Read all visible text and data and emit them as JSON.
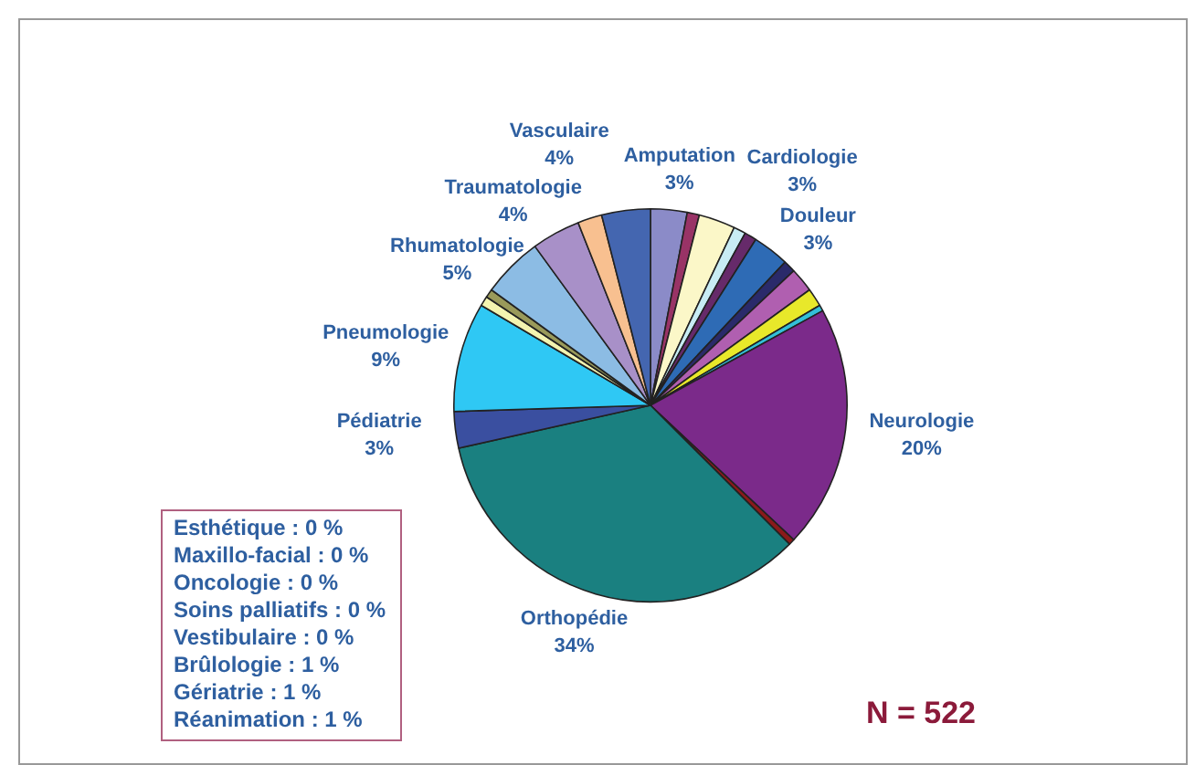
{
  "chart_data": {
    "type": "pie",
    "categories": [
      "Amputation",
      null,
      "Cardiologie",
      null,
      null,
      "Douleur",
      null,
      null,
      null,
      null,
      "Neurologie",
      null,
      "Orthopédie",
      "Pédiatrie",
      "Pneumologie",
      null,
      null,
      "Rhumatologie",
      "Traumatologie",
      null,
      "Vasculaire"
    ],
    "values": [
      3,
      1,
      3,
      1,
      1,
      3,
      1,
      2,
      1.5,
      0.5,
      20,
      0.5,
      34,
      3,
      9,
      0.8,
      0.7,
      5,
      4,
      2,
      4
    ],
    "value_labels": [
      "3%",
      null,
      "3%",
      null,
      null,
      "3%",
      null,
      null,
      null,
      null,
      "20%",
      null,
      "34%",
      "3%",
      "9%",
      null,
      null,
      "5%",
      "4%",
      null,
      "4%"
    ],
    "colors": [
      "#8b8bc8",
      "#993366",
      "#fbf7c8",
      "#c8ecf4",
      "#662a6a",
      "#2e6bb5",
      "#2a2a6a",
      "#b05fb0",
      "#e8e82a",
      "#33c0d8",
      "#7b2a8a",
      "#8b1a1a",
      "#1a8080",
      "#3a4fa0",
      "#2fc8f4",
      "#f4f4b0",
      "#9a9a5a",
      "#8cbce4",
      "#a890c8",
      "#f8c090",
      "#4466b0"
    ],
    "legend": false,
    "annotations": [
      "Esthétique : 0 %\nMaxillo-facial : 0 %\nOncologie : 0 %\nSoins palliatifs : 0 %\nVestibulaire : 0 %\nBrûlologie : 1 %\nGériatrie : 1 %\nRéanimation : 1 %",
      "N = 522"
    ]
  }
}
